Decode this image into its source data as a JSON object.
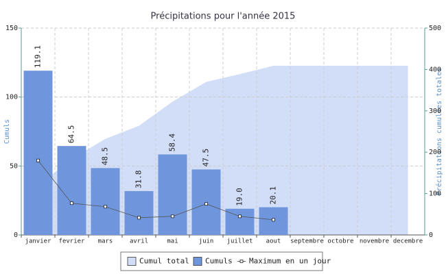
{
  "chart_data": {
    "type": "bar",
    "title": "Précipitations pour l'année 2015",
    "y_label": "Cumuls",
    "y2_label": "Précipitations cumulées totales",
    "categories": [
      "janvier",
      "fevrier",
      "mars",
      "avril",
      "mai",
      "juin",
      "juillet",
      "aout",
      "septembre",
      "octobre",
      "novembre",
      "decembre"
    ],
    "series": [
      {
        "name": "Cumul total",
        "type": "area",
        "axis": "y2",
        "color": "#d2def8",
        "values": [
          119.1,
          183.6,
          232.1,
          263.9,
          322.3,
          369.8,
          388.8,
          408.9,
          408.9,
          408.9,
          408.9,
          408.9
        ]
      },
      {
        "name": "Cumuls",
        "type": "bar",
        "color": "#6f96dd",
        "values": [
          119.1,
          64.5,
          48.5,
          31.8,
          58.4,
          47.5,
          19.0,
          20.1,
          null,
          null,
          null,
          null
        ],
        "value_labels": [
          "119.1",
          "64.5",
          "48.5",
          "31.8",
          "58.4",
          "47.5",
          "19.0",
          "20.1",
          null,
          null,
          null,
          null
        ]
      },
      {
        "name": "Maximum en un jour",
        "type": "line",
        "color": "#555555",
        "values": [
          54,
          23,
          20.5,
          12.5,
          13.5,
          22.5,
          13.5,
          11,
          null,
          null,
          null,
          null
        ]
      }
    ],
    "ylim": [
      0,
      150
    ],
    "yticks": [
      0,
      50,
      100,
      150
    ],
    "y2lim": [
      0,
      500
    ],
    "y2ticks": [
      0,
      100,
      200,
      300,
      400,
      500
    ],
    "grid": true,
    "legend": "bottom"
  }
}
